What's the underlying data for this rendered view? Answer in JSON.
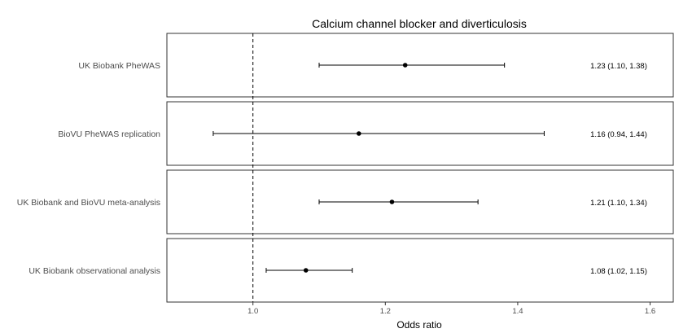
{
  "chart_data": {
    "type": "forest",
    "title": "Calcium channel blocker and diverticulosis",
    "xlabel": "Odds ratio",
    "xlim": [
      0.87,
      1.635
    ],
    "xticks": [
      1.0,
      1.2,
      1.4,
      1.6
    ],
    "xtick_labels": [
      "1.0",
      "1.2",
      "1.4",
      "1.6"
    ],
    "reference_line": 1.0,
    "grid": false,
    "rows": [
      {
        "label": "UK Biobank PheWAS",
        "or": 1.23,
        "lower": 1.1,
        "upper": 1.38,
        "ci_text": "1.23 (1.10, 1.38)"
      },
      {
        "label": "BioVU PheWAS replication",
        "or": 1.16,
        "lower": 0.94,
        "upper": 1.44,
        "ci_text": "1.16 (0.94, 1.44)"
      },
      {
        "label": "UK Biobank and BioVU meta-analysis",
        "or": 1.21,
        "lower": 1.1,
        "upper": 1.34,
        "ci_text": "1.21 (1.10, 1.34)"
      },
      {
        "label": "UK Biobank observational analysis",
        "or": 1.08,
        "lower": 1.02,
        "upper": 1.15,
        "ci_text": "1.08 (1.02, 1.15)"
      }
    ]
  }
}
